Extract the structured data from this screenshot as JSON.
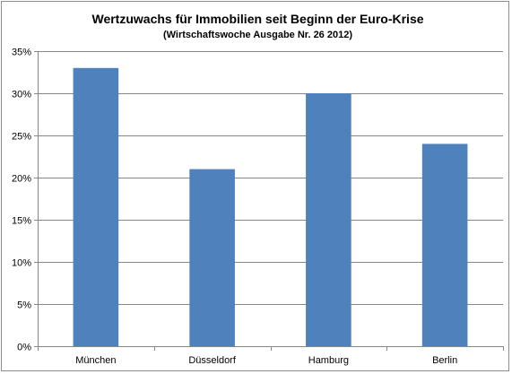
{
  "chart_data": {
    "type": "bar",
    "title": "Wertzuwachs für Immobilien seit Beginn der Euro-Krise",
    "subtitle": "(Wirtschaftswoche Ausgabe Nr. 26 2012)",
    "categories": [
      "München",
      "Düsseldorf",
      "Hamburg",
      "Berlin"
    ],
    "values": [
      33,
      21,
      30,
      24
    ],
    "unit": "%",
    "ylim": [
      0,
      35
    ],
    "yticks": [
      0,
      5,
      10,
      15,
      20,
      25,
      30,
      35
    ],
    "ytick_labels": [
      "0%",
      "5%",
      "10%",
      "15%",
      "20%",
      "25%",
      "30%",
      "35%"
    ],
    "xlabel": "",
    "ylabel": "",
    "grid": true,
    "legend": "none",
    "bar_color": "#4f81bd",
    "grid_color": "#878787"
  }
}
